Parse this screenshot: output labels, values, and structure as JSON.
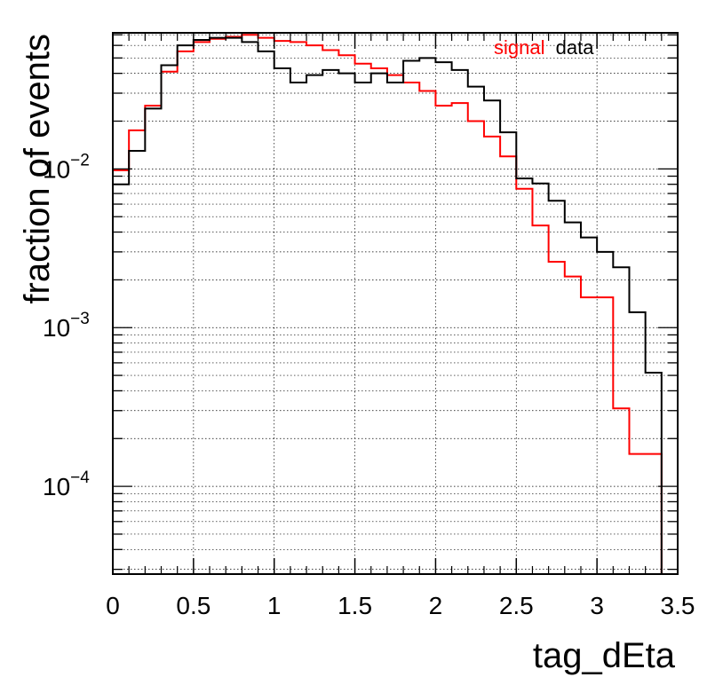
{
  "chart_data": {
    "type": "histogram",
    "title": "",
    "xlabel": "tag_dEta",
    "ylabel": "fraction of events",
    "xlim": [
      0,
      3.5
    ],
    "ylim": [
      2.8e-05,
      0.072
    ],
    "yscale": "log",
    "grid": true,
    "legend_position": "top-right",
    "bin_width": 0.1,
    "x_ticks": [
      0,
      0.5,
      1,
      1.5,
      2,
      2.5,
      3,
      3.5
    ],
    "x_tick_labels": [
      "0",
      "0.5",
      "1",
      "1.5",
      "2",
      "2.5",
      "3",
      "3.5"
    ],
    "y_ticks": [
      0.0001,
      0.001,
      0.01
    ],
    "y_tick_labels": [
      {
        "base": "10",
        "exp": "−4"
      },
      {
        "base": "10",
        "exp": "−3"
      },
      {
        "base": "10",
        "exp": "−2"
      }
    ],
    "bin_edges": [
      0,
      0.1,
      0.2,
      0.3,
      0.4,
      0.5,
      0.6,
      0.7,
      0.8,
      0.9,
      1.0,
      1.1,
      1.2,
      1.3,
      1.4,
      1.5,
      1.6,
      1.7,
      1.8,
      1.9,
      2.0,
      2.1,
      2.2,
      2.3,
      2.4,
      2.5,
      2.6,
      2.7,
      2.8,
      2.9,
      3.0,
      3.1,
      3.2,
      3.3,
      3.4,
      3.5
    ],
    "series": [
      {
        "name": "signal",
        "color": "#ff0000",
        "values": [
          0.0098,
          0.0175,
          0.025,
          0.041,
          0.055,
          0.063,
          0.066,
          0.068,
          0.07,
          0.067,
          0.064,
          0.063,
          0.06,
          0.056,
          0.052,
          0.046,
          0.043,
          0.039,
          0.035,
          0.031,
          0.025,
          0.026,
          0.02,
          0.016,
          0.012,
          0.0075,
          0.0044,
          0.0026,
          0.0021,
          0.00155,
          0.00155,
          0.00031,
          0.00016,
          0.00016,
          2.8e-05
        ]
      },
      {
        "name": "data",
        "color": "#000000",
        "values": [
          0.008,
          0.013,
          0.024,
          0.045,
          0.06,
          0.065,
          0.067,
          0.067,
          0.063,
          0.055,
          0.043,
          0.035,
          0.039,
          0.042,
          0.04,
          0.035,
          0.04,
          0.035,
          0.048,
          0.05,
          0.047,
          0.042,
          0.033,
          0.027,
          0.017,
          0.0087,
          0.0081,
          0.0063,
          0.0046,
          0.0037,
          0.003,
          0.0024,
          0.00125,
          0.00052,
          2.8e-05
        ]
      }
    ]
  }
}
